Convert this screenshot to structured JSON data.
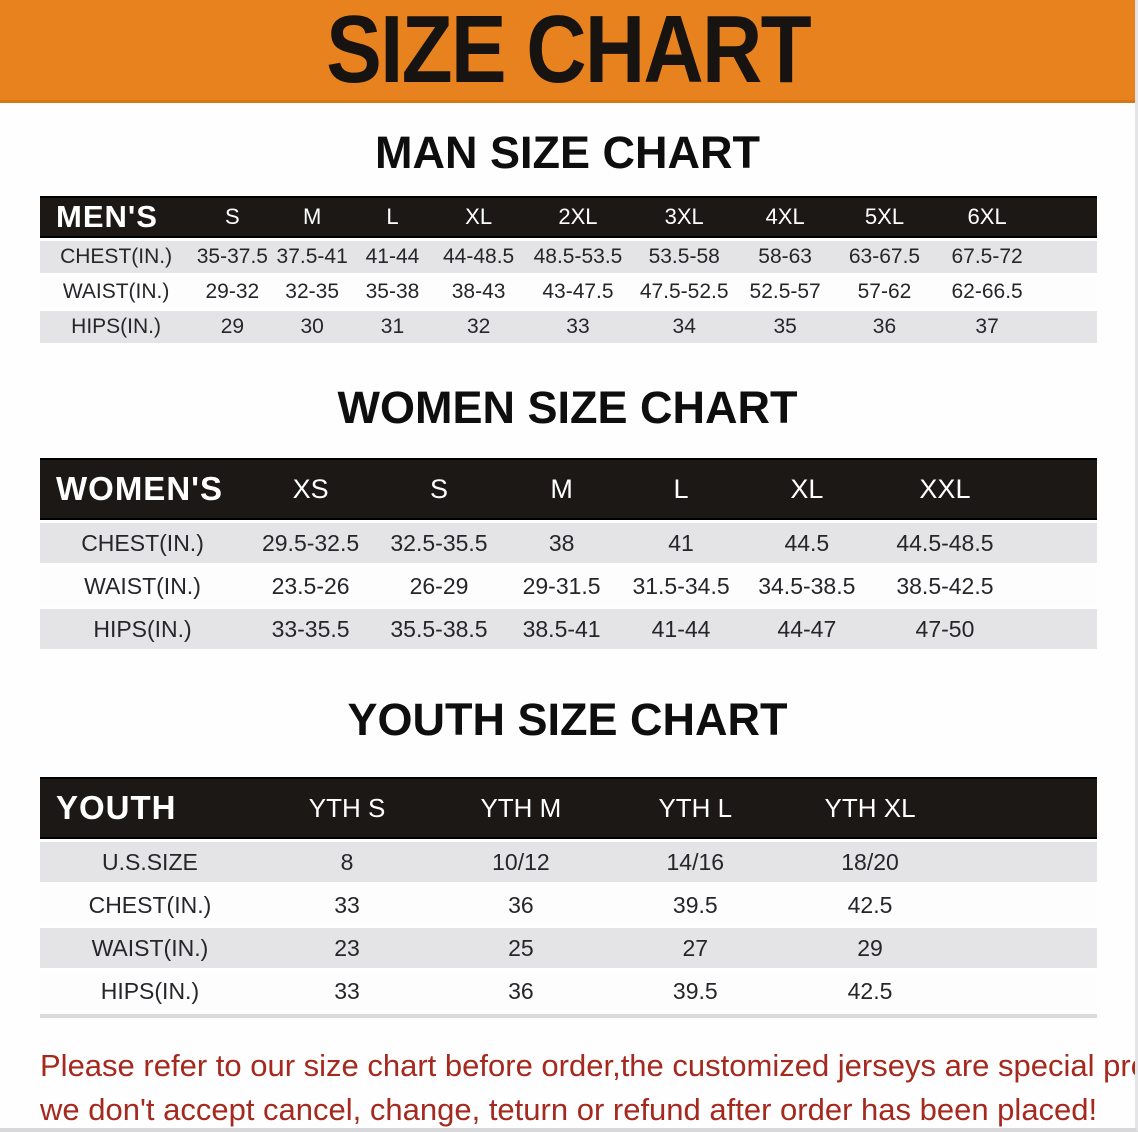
{
  "banner": {
    "title": "SIZE CHART"
  },
  "colors": {
    "banner_bg": "#E8821E",
    "table_header_bg": "#1B1815",
    "row_alt_bg": "#E4E4E6",
    "disclaimer_text": "#A5291E"
  },
  "sections": [
    {
      "heading": "MAN SIZE CHART",
      "table": {
        "group_label": "MEN'S",
        "columns": [
          "S",
          "M",
          "L",
          "XL",
          "2XL",
          "3XL",
          "4XL",
          "5XL",
          "6XL"
        ],
        "rows": [
          {
            "label": "CHEST(IN.)",
            "values": [
              "35-37.5",
              "37.5-41",
              "41-44",
              "44-48.5",
              "48.5-53.5",
              "53.5-58",
              "58-63",
              "63-67.5",
              "67.5-72"
            ]
          },
          {
            "label": "WAIST(IN.)",
            "values": [
              "29-32",
              "32-35",
              "35-38",
              "38-43",
              "43-47.5",
              "47.5-52.5",
              "52.5-57",
              "57-62",
              "62-66.5"
            ]
          },
          {
            "label": "HIPS(IN.)",
            "values": [
              "29",
              "30",
              "31",
              "32",
              "33",
              "34",
              "35",
              "36",
              "37"
            ]
          }
        ]
      }
    },
    {
      "heading": "WOMEN SIZE CHART",
      "table": {
        "group_label": "WOMEN'S",
        "columns": [
          "XS",
          "S",
          "M",
          "L",
          "XL",
          "XXL"
        ],
        "rows": [
          {
            "label": "CHEST(IN.)",
            "values": [
              "29.5-32.5",
              "32.5-35.5",
              "38",
              "41",
              "44.5",
              "44.5-48.5"
            ]
          },
          {
            "label": "WAIST(IN.)",
            "values": [
              "23.5-26",
              "26-29",
              "29-31.5",
              "31.5-34.5",
              "34.5-38.5",
              "38.5-42.5"
            ]
          },
          {
            "label": "HIPS(IN.)",
            "values": [
              "33-35.5",
              "35.5-38.5",
              "38.5-41",
              "41-44",
              "44-47",
              "47-50"
            ]
          }
        ]
      }
    },
    {
      "heading": "YOUTH SIZE CHART",
      "table": {
        "group_label": "YOUTH",
        "columns": [
          "YTH S",
          "YTH M",
          "YTH L",
          "YTH XL"
        ],
        "rows": [
          {
            "label": "U.S.SIZE",
            "values": [
              "8",
              "10/12",
              "14/16",
              "18/20"
            ]
          },
          {
            "label": "CHEST(IN.)",
            "values": [
              "33",
              "36",
              "39.5",
              "42.5"
            ]
          },
          {
            "label": "WAIST(IN.)",
            "values": [
              "23",
              "25",
              "27",
              "29"
            ]
          },
          {
            "label": "HIPS(IN.)",
            "values": [
              "33",
              "36",
              "39.5",
              "42.5"
            ]
          }
        ]
      }
    }
  ],
  "disclaimer": {
    "line1": "Please refer to our size chart before order,the customized jerseys are special products,",
    "line2": "we don't accept cancel, change, teturn or refund after order has been placed!"
  }
}
